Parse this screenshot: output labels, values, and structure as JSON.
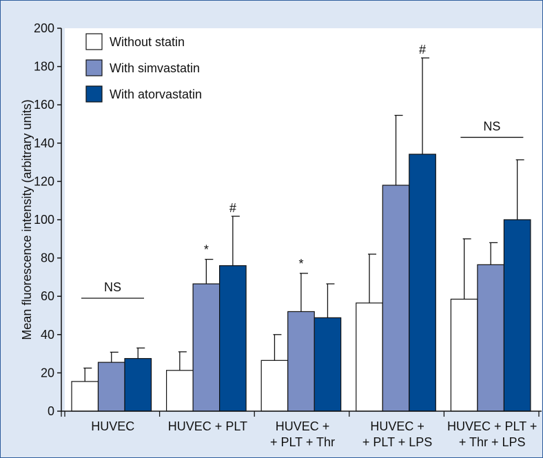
{
  "chart_data": {
    "type": "bar",
    "ylabel": "Mean fluorescence intensity (arbitrary units)",
    "ylim": [
      0,
      200
    ],
    "yticks": [
      0,
      20,
      40,
      60,
      80,
      100,
      120,
      140,
      160,
      180,
      200
    ],
    "grid": false,
    "legend_position": "top-left",
    "categories": [
      [
        "HUVEC"
      ],
      [
        "HUVEC + PLT"
      ],
      [
        "HUVEC +",
        "+ PLT + Thr"
      ],
      [
        "HUVEC +",
        "+ PLT + LPS"
      ],
      [
        "HUVEC + PLT +",
        "+ Thr + LPS"
      ]
    ],
    "series": [
      {
        "name": "Without statin",
        "color": "#ffffff",
        "values": [
          15.5,
          21.3,
          26.5,
          56.5,
          58.5
        ],
        "errors": [
          7.0,
          9.7,
          13.5,
          25.5,
          31.5
        ]
      },
      {
        "name": "With simvastatin",
        "color": "#7b8ec4",
        "values": [
          25.5,
          66.5,
          52.0,
          118.0,
          76.5
        ],
        "errors": [
          5.3,
          12.8,
          20.0,
          36.5,
          11.5
        ]
      },
      {
        "name": "With atorvastatin",
        "color": "#004a93",
        "values": [
          27.5,
          76.0,
          48.8,
          134.2,
          100.0
        ],
        "errors": [
          5.5,
          25.8,
          17.7,
          50.3,
          31.3
        ]
      }
    ],
    "annotations": [
      {
        "text": "NS",
        "type": "bracket",
        "category": 0,
        "y": 59
      },
      {
        "text": "*",
        "type": "star",
        "category": 1,
        "series": 1
      },
      {
        "text": "#",
        "type": "star",
        "category": 1,
        "series": 2
      },
      {
        "text": "*",
        "type": "star",
        "category": 2,
        "series": 1
      },
      {
        "text": "#",
        "type": "star",
        "category": 3,
        "series": 2
      },
      {
        "text": "NS",
        "type": "bracket",
        "category": 4,
        "y": 143
      }
    ]
  }
}
